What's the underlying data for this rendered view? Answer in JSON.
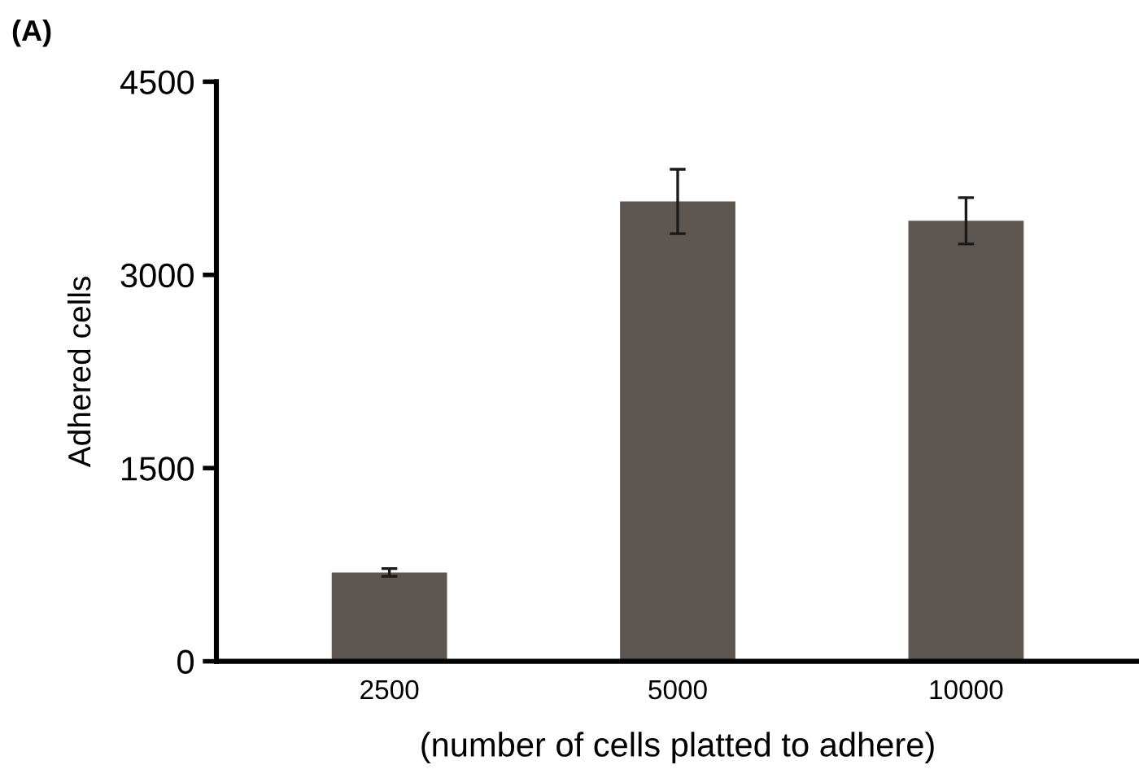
{
  "chart_data": {
    "type": "bar",
    "title": "(A)",
    "xlabel": "(number of cells platted to adhere)",
    "ylabel": "Adhered cells",
    "categories": [
      "2500",
      "5000",
      "10000"
    ],
    "values": [
      690,
      3570,
      3420
    ],
    "errors": [
      30,
      250,
      180
    ],
    "color": "#5e5651",
    "ylim": [
      0,
      4500
    ],
    "yticks": [
      0,
      1500,
      3000,
      4500
    ],
    "grid": false
  }
}
